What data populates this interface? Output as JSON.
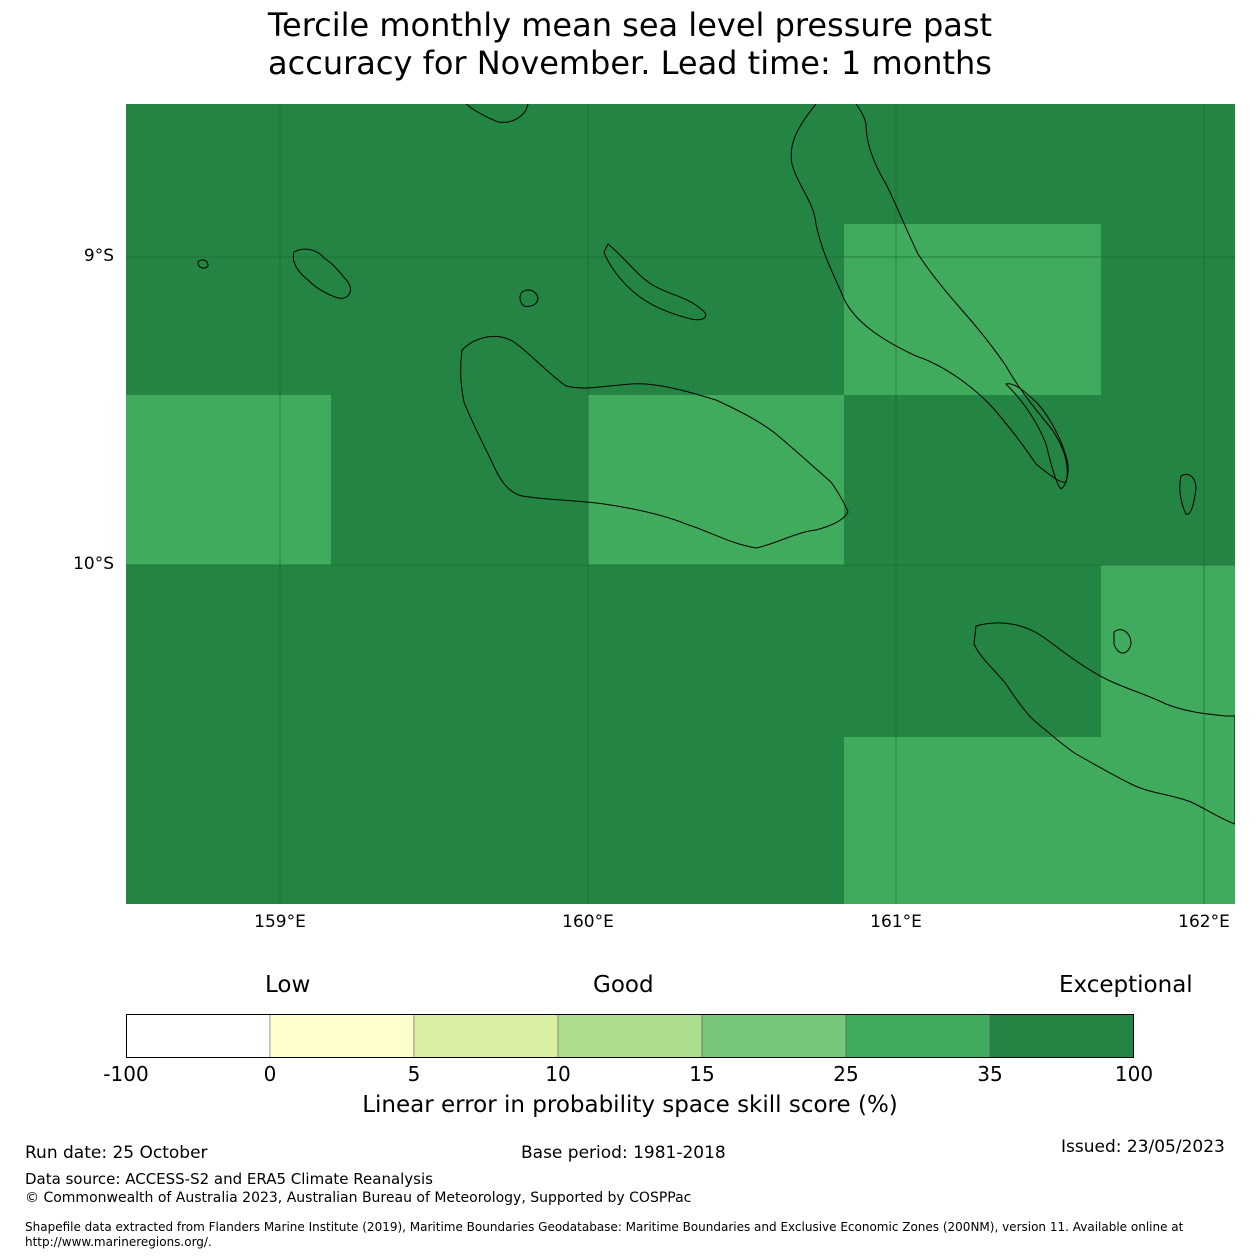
{
  "title": {
    "line1": "Tercile monthly mean sea level pressure past",
    "line2": "accuracy for November. Lead time: 1 months"
  },
  "map": {
    "lat_labels": [
      "9°S",
      "10°S"
    ],
    "lon_labels": [
      "159°E",
      "160°E",
      "161°E",
      "162°E"
    ],
    "colors": {
      "exceptional": "#238443",
      "very_good": "#41ab5d"
    }
  },
  "legend": {
    "categories": [
      "Low",
      "Good",
      "Exceptional"
    ],
    "bins": [
      {
        "color": "#ffffff"
      },
      {
        "color": "#ffffcc"
      },
      {
        "color": "#d9f0a3"
      },
      {
        "color": "#addd8e"
      },
      {
        "color": "#78c679"
      },
      {
        "color": "#41ab5d"
      },
      {
        "color": "#238443"
      }
    ],
    "ticks": [
      "-100",
      "0",
      "5",
      "10",
      "15",
      "25",
      "35",
      "100"
    ],
    "title": "Linear error in probability space skill score (%)"
  },
  "footer": {
    "run_date": "Run date: 25 October",
    "base_period": "Base period: 1981-2018",
    "issued": "Issued: 23/05/2023",
    "data_source": "Data source: ACCESS-S2 and ERA5 Climate Reanalysis",
    "copyright": "© Commonwealth of Australia 2023, Australian Bureau of Meteorology, Supported by COSPPac",
    "shapefile": "Shapefile data extracted from Flanders Marine Institute (2019), Maritime Boundaries Geodatabase: Maritime Boundaries and Exclusive Economic Zones (200NM), version 11. Available online at http://www.marineregions.org/."
  }
}
